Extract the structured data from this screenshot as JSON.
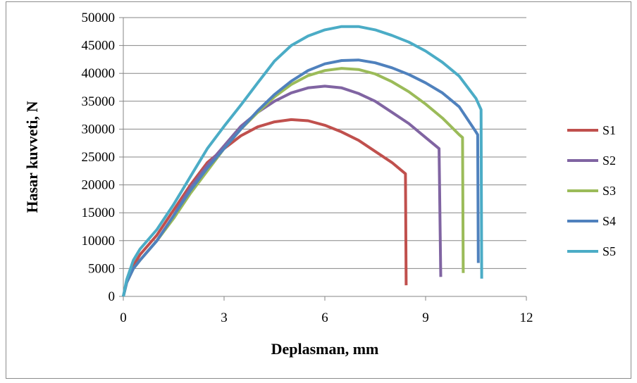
{
  "chart_data": {
    "type": "line",
    "title": "",
    "xlabel": "Deplasman, mm",
    "ylabel": "Hasar kuvveti, N",
    "xlim": [
      0,
      12
    ],
    "ylim": [
      0,
      50000
    ],
    "xticks": [
      0,
      3,
      6,
      9,
      12
    ],
    "yticks": [
      0,
      5000,
      10000,
      15000,
      20000,
      25000,
      30000,
      35000,
      40000,
      45000,
      50000
    ],
    "grid": "horizontal",
    "legend_position": "right",
    "series": [
      {
        "name": "S1",
        "color": "#c0504d",
        "points": [
          [
            0,
            0
          ],
          [
            0.1,
            2500
          ],
          [
            0.3,
            5500
          ],
          [
            0.5,
            7500
          ],
          [
            1,
            11000
          ],
          [
            1.5,
            15500
          ],
          [
            2,
            20000
          ],
          [
            2.5,
            24000
          ],
          [
            3,
            26500
          ],
          [
            3.5,
            28800
          ],
          [
            4,
            30400
          ],
          [
            4.5,
            31300
          ],
          [
            5,
            31700
          ],
          [
            5.5,
            31500
          ],
          [
            6,
            30700
          ],
          [
            6.5,
            29500
          ],
          [
            7,
            28000
          ],
          [
            7.5,
            26000
          ],
          [
            8,
            24000
          ],
          [
            8.3,
            22500
          ],
          [
            8.4,
            22000
          ],
          [
            8.42,
            2000
          ]
        ]
      },
      {
        "name": "S2",
        "color": "#8064a2",
        "points": [
          [
            0,
            0
          ],
          [
            0.1,
            2500
          ],
          [
            0.3,
            5000
          ],
          [
            0.5,
            6500
          ],
          [
            1,
            10000
          ],
          [
            1.5,
            14500
          ],
          [
            2,
            19500
          ],
          [
            2.5,
            23500
          ],
          [
            3,
            27000
          ],
          [
            3.5,
            30500
          ],
          [
            4,
            33000
          ],
          [
            4.5,
            35000
          ],
          [
            5,
            36500
          ],
          [
            5.5,
            37400
          ],
          [
            6,
            37700
          ],
          [
            6.5,
            37400
          ],
          [
            7,
            36400
          ],
          [
            7.5,
            35000
          ],
          [
            8,
            33000
          ],
          [
            8.5,
            31000
          ],
          [
            9,
            28500
          ],
          [
            9.4,
            26500
          ],
          [
            9.45,
            3500
          ]
        ]
      },
      {
        "name": "S3",
        "color": "#9bbb59",
        "points": [
          [
            0,
            0
          ],
          [
            0.1,
            2500
          ],
          [
            0.3,
            5000
          ],
          [
            0.5,
            6500
          ],
          [
            1,
            10000
          ],
          [
            1.5,
            14000
          ],
          [
            2,
            18500
          ],
          [
            2.5,
            22500
          ],
          [
            3,
            26500
          ],
          [
            3.5,
            30000
          ],
          [
            4,
            33000
          ],
          [
            4.5,
            35800
          ],
          [
            5,
            38000
          ],
          [
            5.5,
            39600
          ],
          [
            6,
            40500
          ],
          [
            6.5,
            40900
          ],
          [
            7,
            40700
          ],
          [
            7.5,
            39900
          ],
          [
            8,
            38500
          ],
          [
            8.5,
            36700
          ],
          [
            9,
            34500
          ],
          [
            9.5,
            32000
          ],
          [
            10,
            29000
          ],
          [
            10.1,
            28500
          ],
          [
            10.12,
            4200
          ]
        ]
      },
      {
        "name": "S4",
        "color": "#4f81bd",
        "points": [
          [
            0,
            0
          ],
          [
            0.1,
            2500
          ],
          [
            0.3,
            5000
          ],
          [
            0.5,
            6500
          ],
          [
            1,
            10000
          ],
          [
            1.5,
            14500
          ],
          [
            2,
            19000
          ],
          [
            2.5,
            23000
          ],
          [
            3,
            26500
          ],
          [
            3.5,
            30000
          ],
          [
            4,
            33300
          ],
          [
            4.5,
            36200
          ],
          [
            5,
            38600
          ],
          [
            5.5,
            40500
          ],
          [
            6,
            41700
          ],
          [
            6.5,
            42300
          ],
          [
            7,
            42400
          ],
          [
            7.5,
            41900
          ],
          [
            8,
            41000
          ],
          [
            8.5,
            39800
          ],
          [
            9,
            38300
          ],
          [
            9.5,
            36500
          ],
          [
            10,
            34000
          ],
          [
            10.5,
            29500
          ],
          [
            10.55,
            29000
          ],
          [
            10.57,
            6000
          ]
        ]
      },
      {
        "name": "S5",
        "color": "#4bacc6",
        "points": [
          [
            0,
            0
          ],
          [
            0.1,
            3000
          ],
          [
            0.3,
            6500
          ],
          [
            0.5,
            8500
          ],
          [
            1,
            12000
          ],
          [
            1.5,
            16500
          ],
          [
            2,
            21500
          ],
          [
            2.5,
            26500
          ],
          [
            3,
            30500
          ],
          [
            3.5,
            34300
          ],
          [
            4,
            38300
          ],
          [
            4.5,
            42200
          ],
          [
            5,
            45000
          ],
          [
            5.5,
            46700
          ],
          [
            6,
            47800
          ],
          [
            6.5,
            48400
          ],
          [
            7,
            48400
          ],
          [
            7.5,
            47800
          ],
          [
            8,
            46800
          ],
          [
            8.5,
            45600
          ],
          [
            9,
            44000
          ],
          [
            9.5,
            42000
          ],
          [
            10,
            39500
          ],
          [
            10.5,
            35500
          ],
          [
            10.65,
            33500
          ],
          [
            10.67,
            3200
          ]
        ]
      }
    ]
  }
}
